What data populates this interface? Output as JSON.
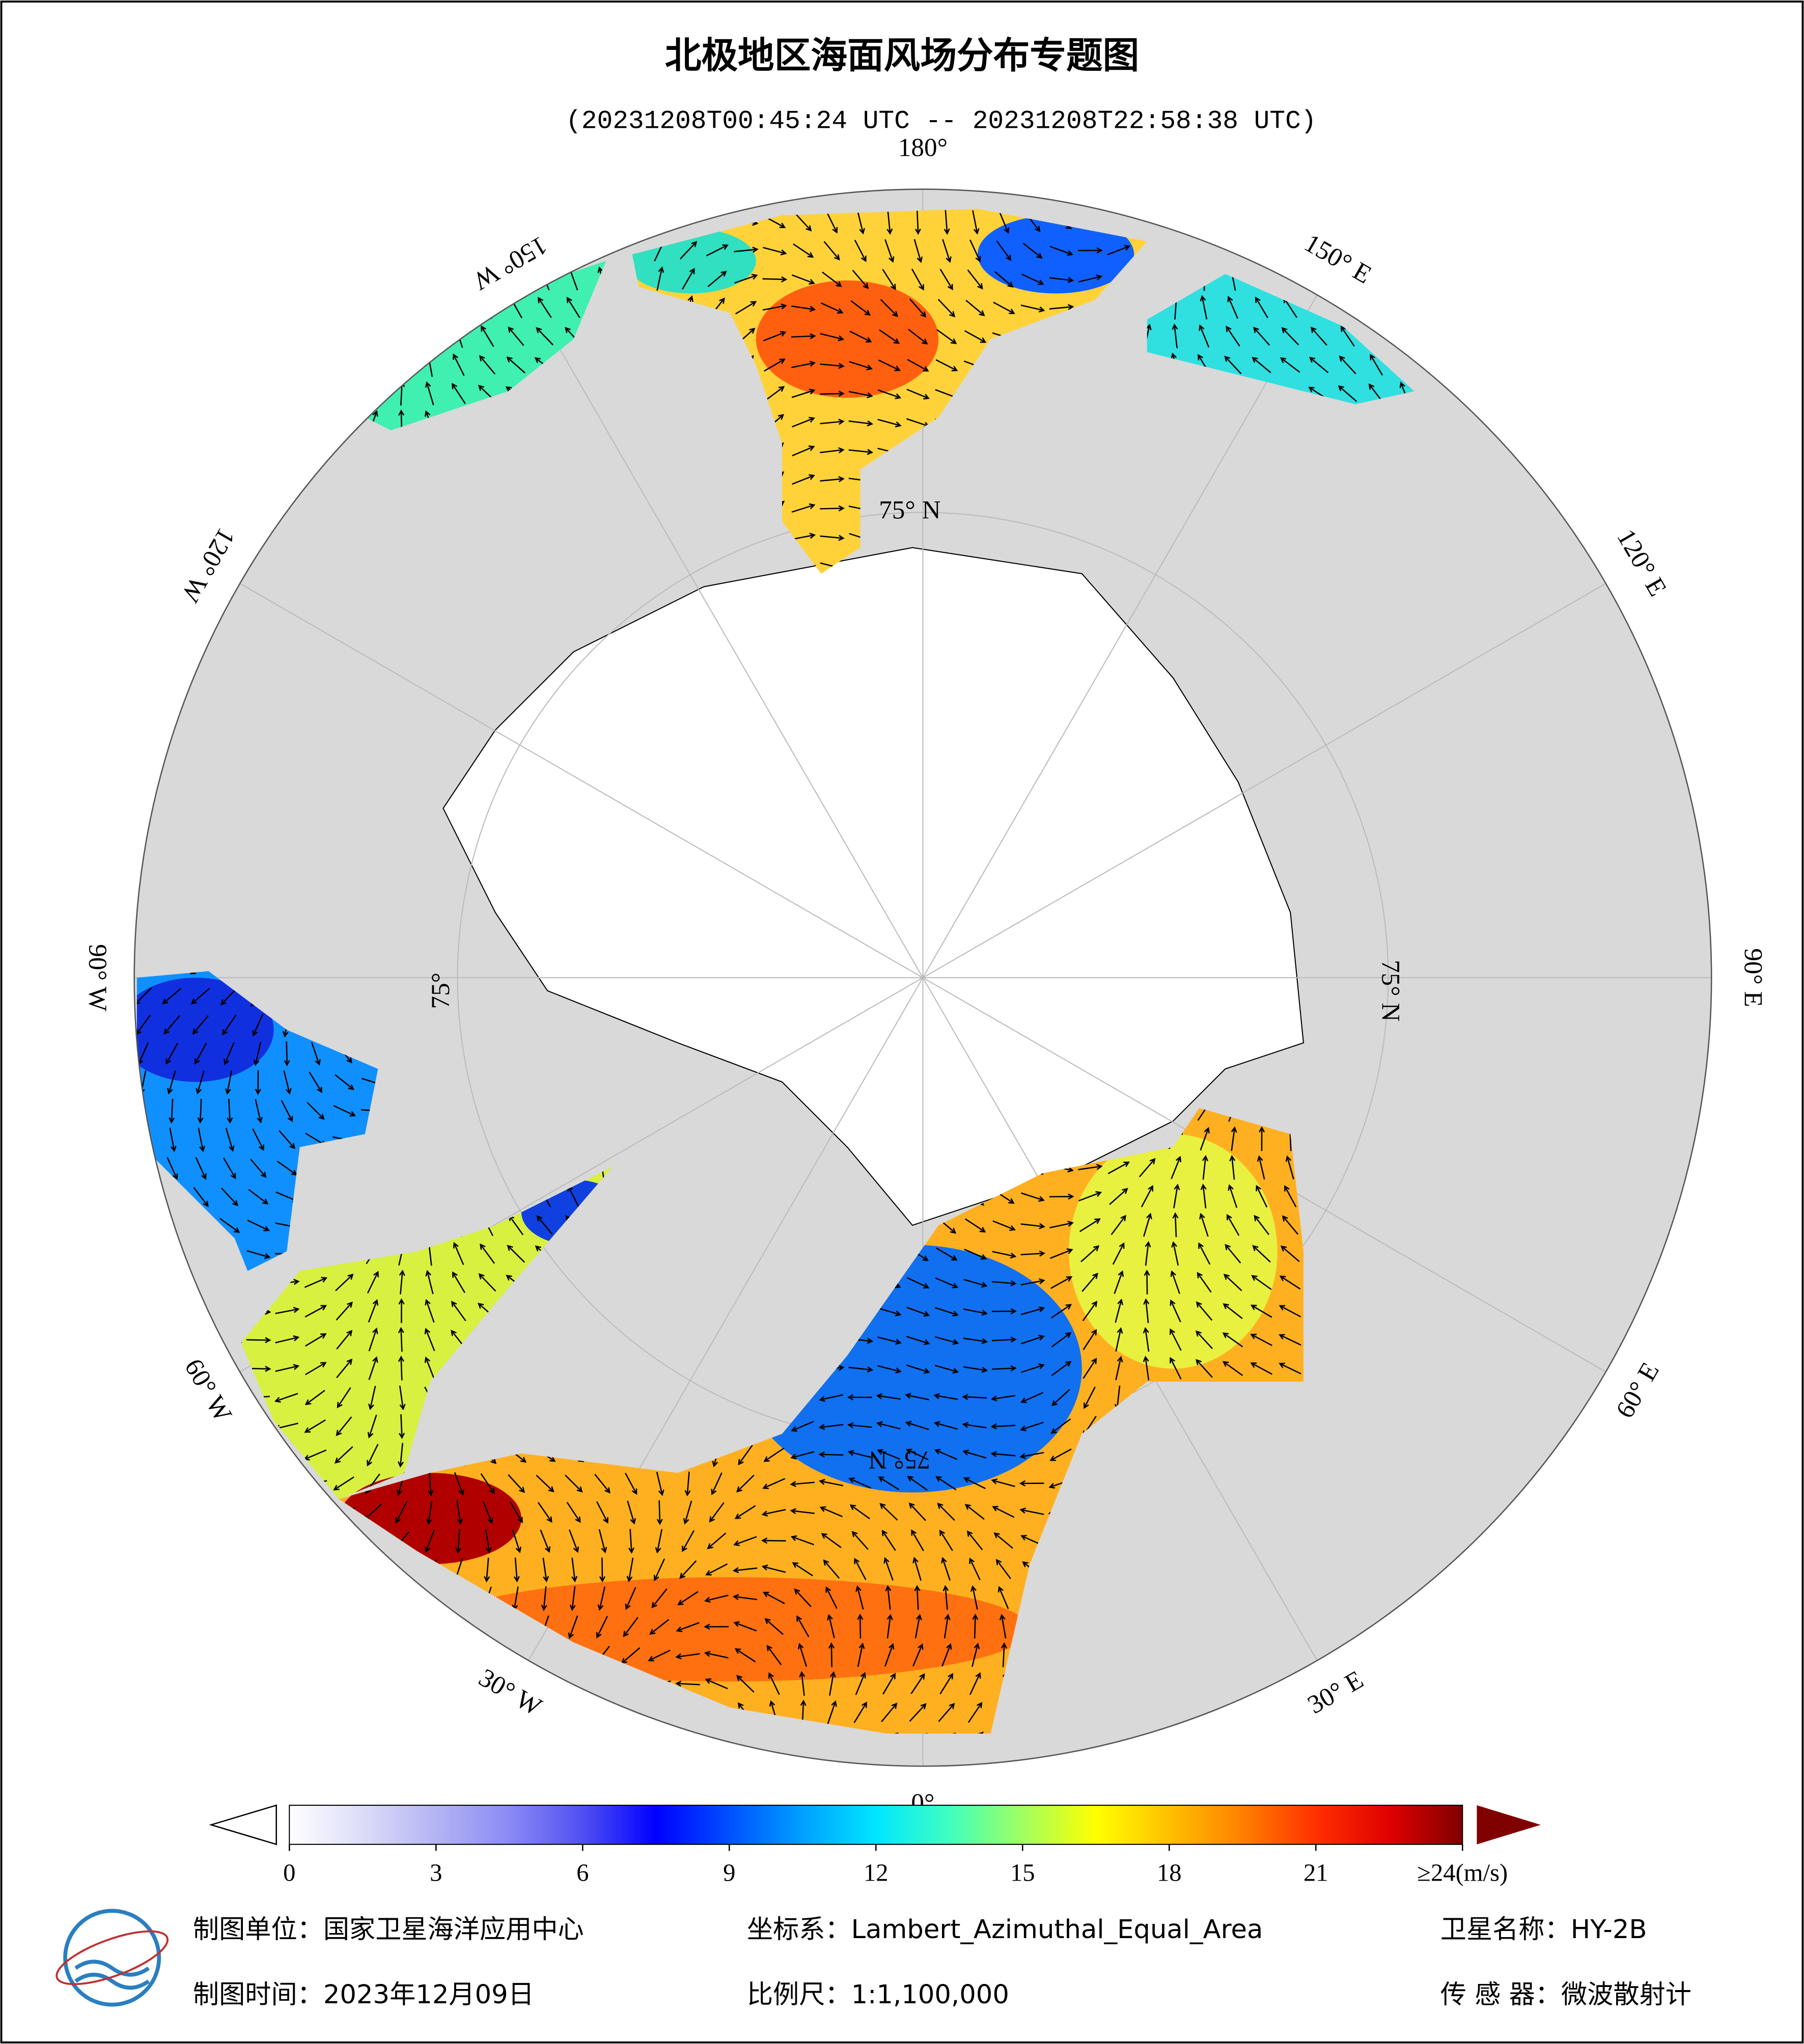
{
  "header": {
    "title": "北极地区海面风场分布专题图",
    "subtitle": "(20231208T00:45:24 UTC -- 20231208T22:58:38 UTC)"
  },
  "map": {
    "longitude_labels": [
      "180°",
      "150° E",
      "120° E",
      "90° E",
      "60° E",
      "30° E",
      "0°",
      "30° W",
      "60° W",
      "90° W",
      "120° W",
      "150° W"
    ],
    "latitude_labels": [
      "75° N",
      "75° N",
      "75° N",
      "75°"
    ]
  },
  "colorbar": {
    "lim": [
      0,
      24
    ],
    "ticks": [
      0,
      3,
      6,
      9,
      12,
      15,
      18,
      21,
      {
        "value": 24,
        "label": "≥24(m/s)"
      }
    ],
    "colors": [
      "#ffffff",
      "#dcdcf8",
      "#b4b4f4",
      "#8a8af4",
      "#5050f2",
      "#0000ff",
      "#0050ff",
      "#00a0ff",
      "#00e6ff",
      "#40ffc0",
      "#a0ff60",
      "#ffff00",
      "#ffc000",
      "#ff8000",
      "#ff3000",
      "#e00000",
      "#800000"
    ]
  },
  "footer": {
    "unit": "制图单位：国家卫星海洋应用中心",
    "projection": "坐标系：Lambert_Azimuthal_Equal_Area",
    "satellite": "卫星名称：HY-2B",
    "date": "制图时间：2023年12月09日",
    "scale": "比例尺：1:1,100,000",
    "sensor": "传 感 器：微波散射计"
  }
}
